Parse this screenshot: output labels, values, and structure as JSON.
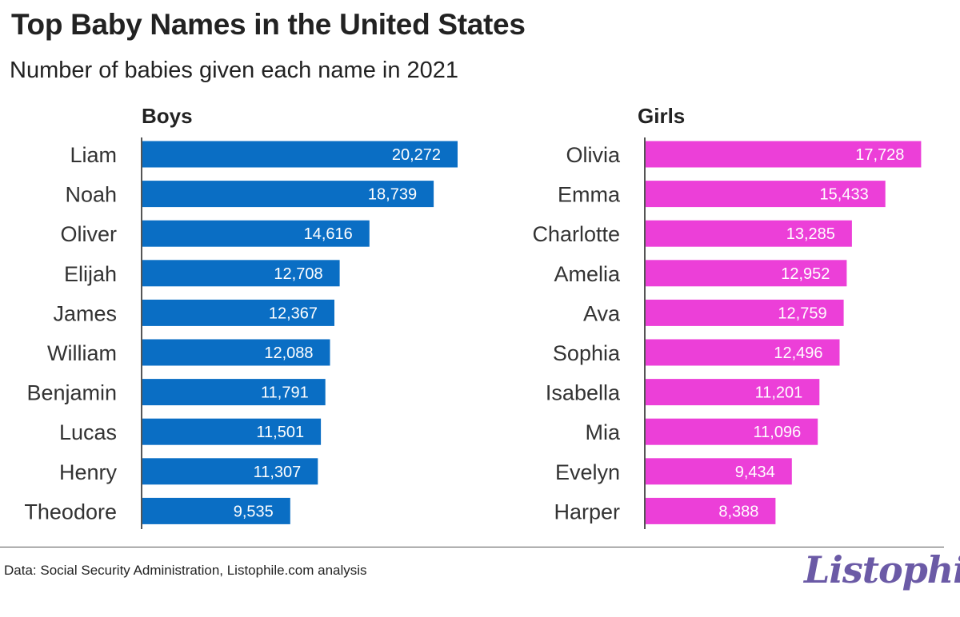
{
  "title": "Top Baby Names in the United States",
  "subtitle": "Number of babies given each name in 2021",
  "source": "Data: Social Security Administration, Listophile.com analysis",
  "brand": "Listophile",
  "colors": {
    "boys_bar": "#0a6ec4",
    "girls_bar": "#ec3fd8",
    "brand": "#6b5aa6"
  },
  "chart_data": [
    {
      "type": "bar",
      "orientation": "horizontal",
      "title": "Boys",
      "categories": [
        "Liam",
        "Noah",
        "Oliver",
        "Elijah",
        "James",
        "William",
        "Benjamin",
        "Lucas",
        "Henry",
        "Theodore"
      ],
      "values": [
        20272,
        18739,
        14616,
        12708,
        12367,
        12088,
        11791,
        11501,
        11307,
        9535
      ],
      "value_labels": [
        "20,272",
        "18,739",
        "14,616",
        "12,708",
        "12,367",
        "12,088",
        "11,791",
        "11,501",
        "11,307",
        "9,535"
      ],
      "xlim": [
        0,
        20272
      ],
      "grid": false,
      "color": "#0a6ec4"
    },
    {
      "type": "bar",
      "orientation": "horizontal",
      "title": "Girls",
      "categories": [
        "Olivia",
        "Emma",
        "Charlotte",
        "Amelia",
        "Ava",
        "Sophia",
        "Isabella",
        "Mia",
        "Evelyn",
        "Harper"
      ],
      "values": [
        17728,
        15433,
        13285,
        12952,
        12759,
        12496,
        11201,
        11096,
        9434,
        8388
      ],
      "value_labels": [
        "17,728",
        "15,433",
        "13,285",
        "12,952",
        "12,759",
        "12,496",
        "11,201",
        "11,096",
        "9,434",
        "8,388"
      ],
      "xlim": [
        0,
        20272
      ],
      "grid": false,
      "color": "#ec3fd8"
    }
  ]
}
